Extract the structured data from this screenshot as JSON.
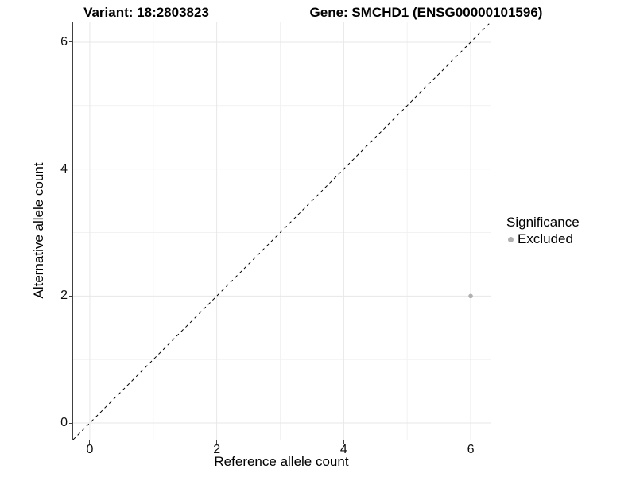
{
  "titles": {
    "variant": "Variant: 18:2803823",
    "gene": "Gene: SMCHD1 (ENSG00000101596)"
  },
  "colors": {
    "background": "#ffffff",
    "grid_major": "#e7e7e7",
    "grid_minor": "#f2f2f2",
    "axis_line": "#404040",
    "reference_line": "#000000",
    "point_excluded": "#b0b0b0",
    "text": "#000000"
  },
  "legend": {
    "title": "Significance",
    "items": [
      {
        "label": "Excluded",
        "color": "#b0b0b0"
      }
    ]
  },
  "chart_data": {
    "type": "scatter",
    "title_left": "Variant: 18:2803823",
    "title_right": "Gene: SMCHD1 (ENSG00000101596)",
    "xlabel": "Reference allele count",
    "ylabel": "Alternative allele count",
    "xlim": [
      -0.2625,
      6.3125
    ],
    "ylim": [
      -0.2625,
      6.3125
    ],
    "x_major_ticks": [
      0,
      2,
      4,
      6
    ],
    "y_major_ticks": [
      0,
      2,
      4,
      6
    ],
    "x_minor_gridlines": [
      1,
      3,
      5
    ],
    "y_minor_gridlines": [
      1,
      3,
      5
    ],
    "grid": "on",
    "legend_position": "right",
    "legend_title": "Significance",
    "series": [
      {
        "name": "Excluded",
        "color": "#b0b0b0",
        "points": [
          {
            "x": 6,
            "y": 2
          }
        ]
      }
    ],
    "reference_line": {
      "kind": "identity y = x",
      "slope": 1,
      "intercept": 0,
      "linestyle": "dashed",
      "color": "#000000"
    }
  }
}
